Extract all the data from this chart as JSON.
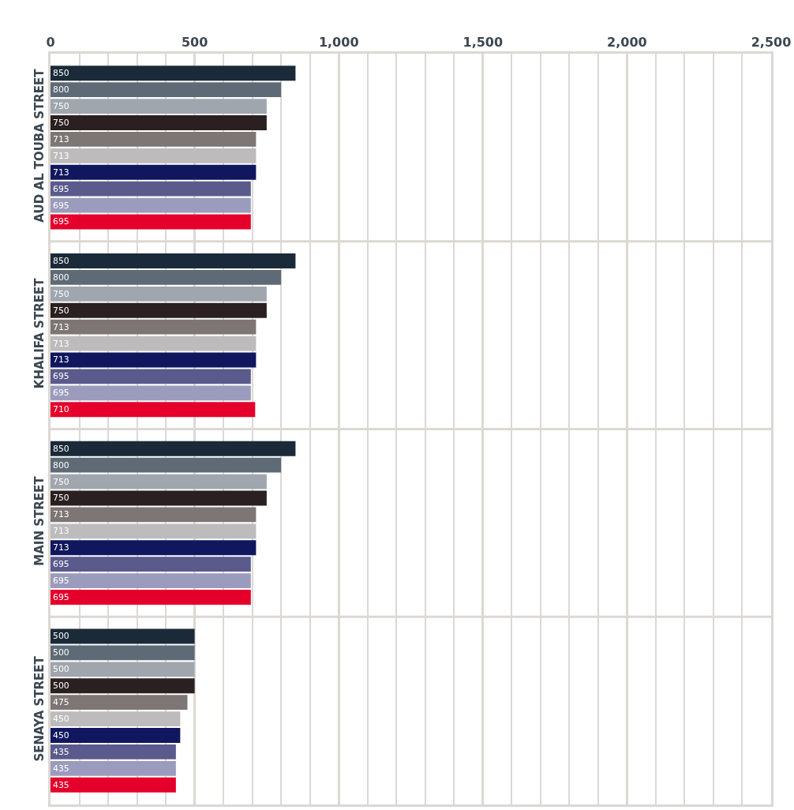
{
  "chart_data": {
    "type": "bar",
    "orientation": "horizontal",
    "data_labels": true,
    "grid": true,
    "categories": [
      "AUD AL TOUBA STREET",
      "KHALIFA STREET",
      "MAIN STREET",
      "SENAYA STREET"
    ],
    "series": [
      {
        "color": "#1b2a38",
        "values": [
          850,
          850,
          850,
          500
        ]
      },
      {
        "color": "#5e6a75",
        "values": [
          800,
          800,
          800,
          500
        ]
      },
      {
        "color": "#a0a6ae",
        "values": [
          750,
          750,
          750,
          500
        ]
      },
      {
        "color": "#2a1f21",
        "values": [
          750,
          750,
          750,
          500
        ]
      },
      {
        "color": "#7d7675",
        "values": [
          713,
          713,
          713,
          475
        ]
      },
      {
        "color": "#bdbbbc",
        "values": [
          713,
          713,
          713,
          450
        ]
      },
      {
        "color": "#11175e",
        "values": [
          713,
          713,
          713,
          450
        ]
      },
      {
        "color": "#5b5a8c",
        "values": [
          695,
          695,
          695,
          435
        ]
      },
      {
        "color": "#9b9bbd",
        "values": [
          695,
          695,
          695,
          435
        ]
      },
      {
        "color": "#e4002b",
        "values": [
          695,
          710,
          695,
          435
        ]
      }
    ],
    "xlim": [
      0,
      2500
    ],
    "xticks": [
      0,
      {
        "value": 100,
        "label": null
      },
      {
        "value": 200,
        "label": null
      },
      {
        "value": 300,
        "label": null
      },
      {
        "value": 400,
        "label": null
      },
      500,
      {
        "value": 600,
        "label": null
      },
      {
        "value": 700,
        "label": null
      },
      {
        "value": 800,
        "label": null
      },
      {
        "value": 900,
        "label": null
      },
      {
        "value": 1000,
        "label": "1,000"
      },
      {
        "value": 1100,
        "label": null
      },
      {
        "value": 1200,
        "label": null
      },
      {
        "value": 1300,
        "label": null
      },
      {
        "value": 1400,
        "label": null
      },
      {
        "value": 1500,
        "label": "1,500"
      },
      {
        "value": 1600,
        "label": null
      },
      {
        "value": 1700,
        "label": null
      },
      {
        "value": 1800,
        "label": null
      },
      {
        "value": 1900,
        "label": null
      },
      {
        "value": 2000,
        "label": "2,000"
      },
      {
        "value": 2100,
        "label": null
      },
      {
        "value": 2200,
        "label": null
      },
      {
        "value": 2300,
        "label": null
      },
      {
        "value": 2400,
        "label": null
      },
      {
        "value": 2500,
        "label": "2,500"
      }
    ]
  }
}
